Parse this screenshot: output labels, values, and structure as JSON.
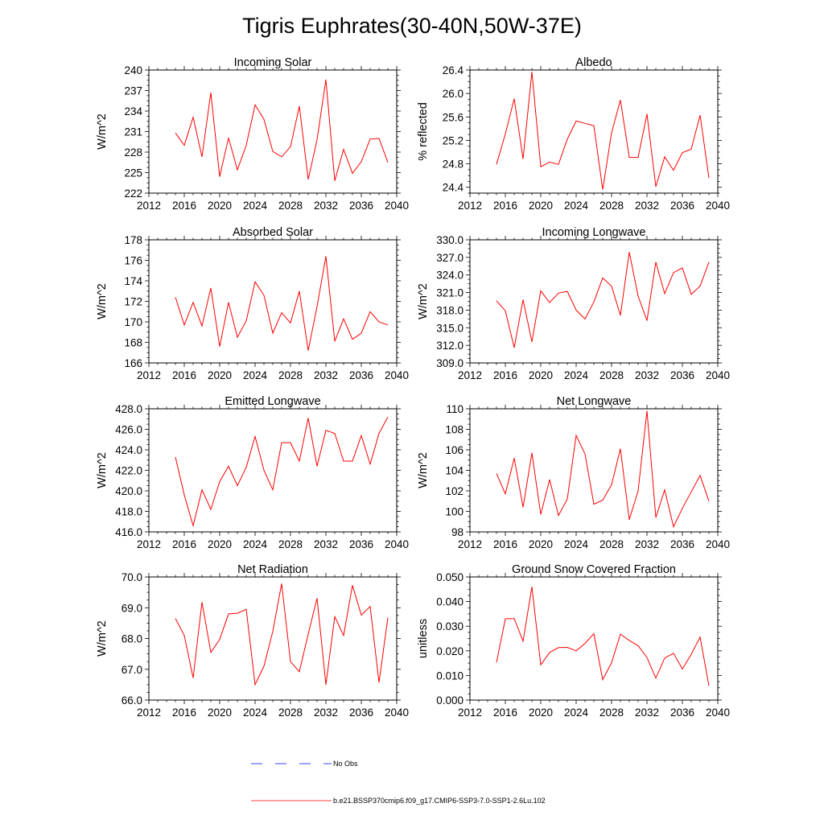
{
  "figure": {
    "title": "Tigris Euphrates(30-40N,50W-37E)",
    "line_color": "#ff0000",
    "obs_color": "#0000ff"
  },
  "legend": [
    {
      "label": "No Obs",
      "style": "dashed",
      "color": "#0000ff"
    },
    {
      "label": "b.e21.BSSP370cmip6.f09_g17.CMIP6-SSP3-7.0-SSP1-2.6Lu.102",
      "style": "solid",
      "color": "#ff0000"
    }
  ],
  "chart_data": [
    {
      "type": "line",
      "title": "Incoming Solar",
      "ylabel": "W/m^2",
      "xlim": [
        2012,
        2040
      ],
      "x_ticks": [
        2012,
        2016,
        2020,
        2024,
        2028,
        2032,
        2036,
        2040
      ],
      "ylim": [
        222,
        240
      ],
      "y_ticks": [
        "222",
        "225",
        "228",
        "231",
        "234",
        "237",
        "240"
      ],
      "series": [
        {
          "x": [
            2015,
            2016,
            2017,
            2018,
            2019,
            2020,
            2021,
            2022,
            2023,
            2024,
            2025,
            2026,
            2027,
            2028,
            2029,
            2030,
            2031,
            2032,
            2033,
            2034,
            2035,
            2036,
            2037,
            2038,
            2039
          ],
          "values": [
            230.8,
            229.0,
            233.1,
            227.3,
            236.7,
            224.4,
            230.1,
            225.4,
            229.0,
            234.9,
            232.8,
            228.1,
            227.3,
            228.8,
            234.7,
            224.0,
            229.8,
            238.6,
            223.8,
            228.4,
            224.9,
            226.6,
            229.9,
            230.0,
            226.5
          ]
        }
      ]
    },
    {
      "type": "line",
      "title": "Albedo",
      "ylabel": "% reflected",
      "xlim": [
        2012,
        2040
      ],
      "x_ticks": [
        2012,
        2016,
        2020,
        2024,
        2028,
        2032,
        2036,
        2040
      ],
      "ylim": [
        24.3,
        26.4
      ],
      "y_ticks": [
        "24.4",
        "24.8",
        "25.2",
        "25.6",
        "26.0",
        "26.4"
      ],
      "series": [
        {
          "x": [
            2015,
            2016,
            2017,
            2018,
            2019,
            2020,
            2021,
            2022,
            2023,
            2024,
            2025,
            2026,
            2027,
            2028,
            2029,
            2030,
            2031,
            2032,
            2033,
            2034,
            2035,
            2036,
            2037,
            2038,
            2039
          ],
          "values": [
            24.79,
            25.31,
            25.91,
            24.88,
            26.37,
            24.75,
            24.83,
            24.79,
            25.22,
            25.53,
            25.49,
            25.45,
            24.36,
            25.33,
            25.89,
            24.91,
            24.91,
            25.65,
            24.41,
            24.92,
            24.69,
            24.99,
            25.05,
            25.63,
            24.56
          ]
        }
      ]
    },
    {
      "type": "line",
      "title": "Absorbed Solar",
      "ylabel": "W/m^2",
      "xlim": [
        2012,
        2040
      ],
      "x_ticks": [
        2012,
        2016,
        2020,
        2024,
        2028,
        2032,
        2036,
        2040
      ],
      "ylim": [
        166,
        178
      ],
      "y_ticks": [
        "166",
        "168",
        "170",
        "172",
        "174",
        "176",
        "178"
      ],
      "series": [
        {
          "x": [
            2015,
            2016,
            2017,
            2018,
            2019,
            2020,
            2021,
            2022,
            2023,
            2024,
            2025,
            2026,
            2027,
            2028,
            2029,
            2030,
            2031,
            2032,
            2033,
            2034,
            2035,
            2036,
            2037,
            2038,
            2039
          ],
          "values": [
            172.4,
            169.7,
            171.9,
            169.6,
            173.3,
            167.6,
            171.9,
            168.5,
            170.1,
            173.9,
            172.6,
            168.9,
            170.9,
            169.9,
            173.0,
            167.2,
            171.5,
            176.4,
            168.1,
            170.3,
            168.3,
            168.9,
            171.0,
            170.0,
            169.7
          ]
        }
      ]
    },
    {
      "type": "line",
      "title": "Incoming Longwave",
      "ylabel": "W/m^2",
      "xlim": [
        2012,
        2040
      ],
      "x_ticks": [
        2012,
        2016,
        2020,
        2024,
        2028,
        2032,
        2036,
        2040
      ],
      "ylim": [
        309,
        330
      ],
      "y_ticks": [
        "309.0",
        "312.0",
        "315.0",
        "318.0",
        "321.0",
        "324.0",
        "327.0",
        "330.0"
      ],
      "series": [
        {
          "x": [
            2015,
            2016,
            2017,
            2018,
            2019,
            2020,
            2021,
            2022,
            2023,
            2024,
            2025,
            2026,
            2027,
            2028,
            2029,
            2030,
            2031,
            2032,
            2033,
            2034,
            2035,
            2036,
            2037,
            2038,
            2039
          ],
          "values": [
            319.6,
            317.9,
            311.6,
            319.8,
            312.6,
            321.3,
            319.3,
            320.9,
            321.2,
            318.0,
            316.5,
            319.4,
            323.5,
            322.1,
            317.1,
            327.9,
            320.4,
            316.2,
            326.2,
            320.8,
            324.4,
            325.2,
            320.7,
            322.1,
            326.2
          ]
        }
      ]
    },
    {
      "type": "line",
      "title": "Emitted Longwave",
      "ylabel": "W/m^2",
      "xlim": [
        2012,
        2040
      ],
      "x_ticks": [
        2012,
        2016,
        2020,
        2024,
        2028,
        2032,
        2036,
        2040
      ],
      "ylim": [
        416,
        428
      ],
      "y_ticks": [
        "416.0",
        "418.0",
        "420.0",
        "422.0",
        "424.0",
        "426.0",
        "428.0"
      ],
      "series": [
        {
          "x": [
            2015,
            2016,
            2017,
            2018,
            2019,
            2020,
            2021,
            2022,
            2023,
            2024,
            2025,
            2026,
            2027,
            2028,
            2029,
            2030,
            2031,
            2032,
            2033,
            2034,
            2035,
            2036,
            2037,
            2038,
            2039
          ],
          "values": [
            423.3,
            419.6,
            416.6,
            420.1,
            418.2,
            420.9,
            422.4,
            420.5,
            422.3,
            425.3,
            422.0,
            420.1,
            424.7,
            424.7,
            422.9,
            427.1,
            422.4,
            425.9,
            425.6,
            422.9,
            422.9,
            425.4,
            422.6,
            425.6,
            427.2
          ]
        }
      ]
    },
    {
      "type": "line",
      "title": "Net Longwave",
      "ylabel": "W/m^2",
      "xlim": [
        2012,
        2040
      ],
      "x_ticks": [
        2012,
        2016,
        2020,
        2024,
        2028,
        2032,
        2036,
        2040
      ],
      "ylim": [
        98,
        110
      ],
      "y_ticks": [
        "98",
        "100",
        "102",
        "104",
        "106",
        "108",
        "110"
      ],
      "series": [
        {
          "x": [
            2015,
            2016,
            2017,
            2018,
            2019,
            2020,
            2021,
            2022,
            2023,
            2024,
            2025,
            2026,
            2027,
            2028,
            2029,
            2030,
            2031,
            2032,
            2033,
            2034,
            2035,
            2036,
            2037,
            2038,
            2039
          ],
          "values": [
            103.7,
            101.7,
            105.2,
            100.4,
            105.7,
            99.7,
            103.1,
            99.6,
            101.2,
            107.4,
            105.6,
            100.7,
            101.1,
            102.6,
            106.1,
            99.2,
            102.0,
            109.8,
            99.4,
            102.1,
            98.5,
            100.3,
            101.9,
            103.5,
            101.0
          ]
        }
      ]
    },
    {
      "type": "line",
      "title": "Net Radiation",
      "ylabel": "W/m^2",
      "xlim": [
        2012,
        2040
      ],
      "x_ticks": [
        2012,
        2016,
        2020,
        2024,
        2028,
        2032,
        2036,
        2040
      ],
      "ylim": [
        66,
        70
      ],
      "y_ticks": [
        "66.0",
        "67.0",
        "68.0",
        "69.0",
        "70.0"
      ],
      "series": [
        {
          "x": [
            2015,
            2016,
            2017,
            2018,
            2019,
            2020,
            2021,
            2022,
            2023,
            2024,
            2025,
            2026,
            2027,
            2028,
            2029,
            2030,
            2031,
            2032,
            2033,
            2034,
            2035,
            2036,
            2037,
            2038,
            2039
          ],
          "values": [
            68.65,
            68.1,
            66.72,
            69.18,
            67.55,
            67.97,
            68.8,
            68.82,
            68.95,
            66.5,
            67.1,
            68.23,
            69.78,
            67.25,
            66.92,
            68.14,
            69.31,
            66.5,
            68.71,
            68.1,
            69.73,
            68.76,
            69.04,
            66.57,
            68.68
          ]
        }
      ]
    },
    {
      "type": "line",
      "title": "Ground Snow Covered Fraction",
      "ylabel": "unitless",
      "xlim": [
        2012,
        2040
      ],
      "x_ticks": [
        2012,
        2016,
        2020,
        2024,
        2028,
        2032,
        2036,
        2040
      ],
      "ylim": [
        0,
        0.05
      ],
      "y_ticks": [
        "0.000",
        "0.010",
        "0.020",
        "0.030",
        "0.040",
        "0.050"
      ],
      "series": [
        {
          "x": [
            2015,
            2016,
            2017,
            2018,
            2019,
            2020,
            2021,
            2022,
            2023,
            2024,
            2025,
            2026,
            2027,
            2028,
            2029,
            2030,
            2031,
            2032,
            2033,
            2034,
            2035,
            2036,
            2037,
            2038,
            2039
          ],
          "values": [
            0.0153,
            0.033,
            0.0331,
            0.0239,
            0.046,
            0.0143,
            0.0193,
            0.0213,
            0.0214,
            0.02,
            0.023,
            0.027,
            0.0083,
            0.0152,
            0.0268,
            0.0242,
            0.0221,
            0.0173,
            0.0089,
            0.0171,
            0.019,
            0.0126,
            0.0186,
            0.0256,
            0.0058
          ]
        }
      ]
    }
  ]
}
